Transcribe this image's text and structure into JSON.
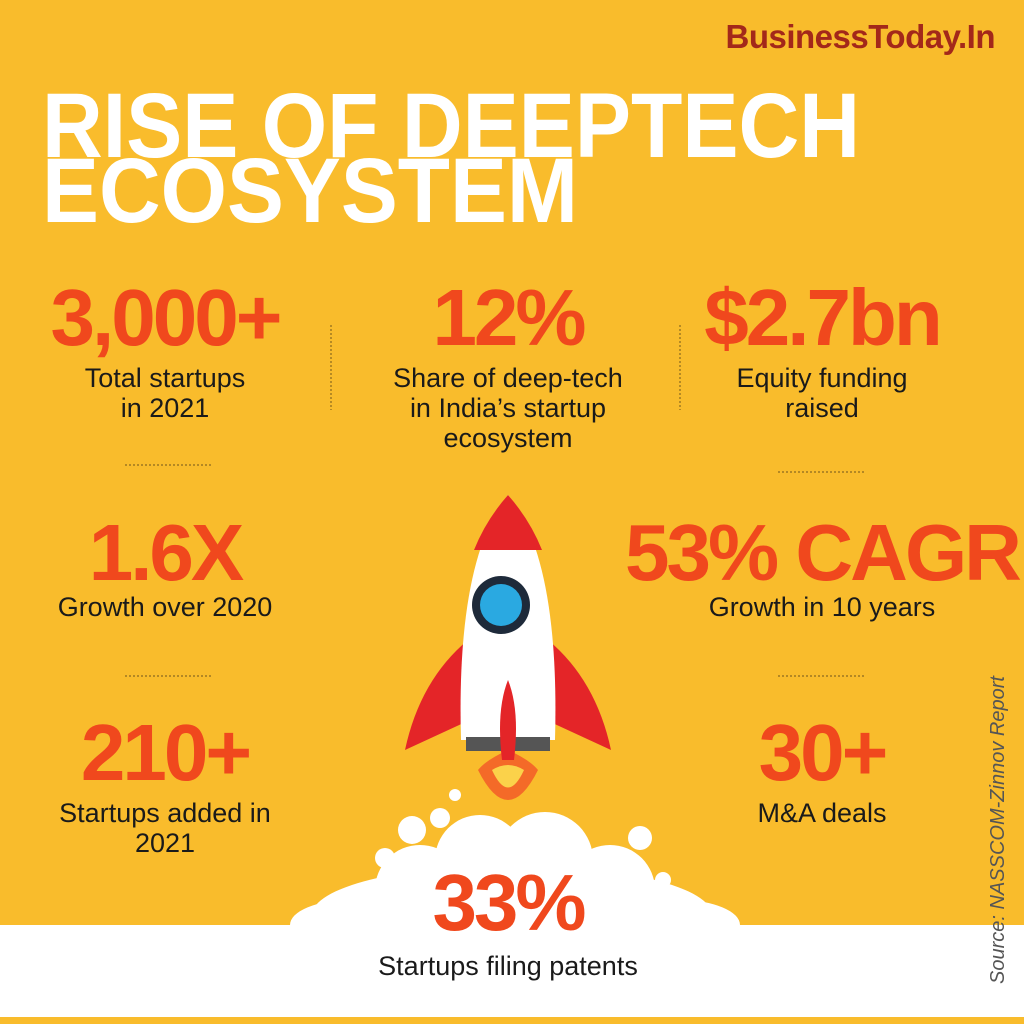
{
  "brand": "BusinessToday.In",
  "title": [
    "RISE OF DEEPTECH",
    "ECOSYSTEM"
  ],
  "stats": [
    {
      "value": "3,000+",
      "label": [
        "Total startups",
        "in 2021"
      ]
    },
    {
      "value": "12%",
      "label": [
        "Share of deep-tech",
        "in India’s startup",
        "ecosystem"
      ]
    },
    {
      "value": "$2.7bn",
      "label": [
        "Equity funding",
        "raised"
      ]
    },
    {
      "value": "1.6X",
      "label": [
        "Growth over 2020"
      ]
    },
    {
      "value": "53% CAGR",
      "label": [
        "Growth in 10 years"
      ]
    },
    {
      "value": "210+",
      "label": [
        "Startups added in",
        "2021"
      ]
    },
    {
      "value": "30+",
      "label": [
        "M&A deals"
      ]
    },
    {
      "value": "33%",
      "label": [
        "Startups filing patents"
      ]
    }
  ],
  "source": "Source: NASSCOM-Zinnov Report"
}
